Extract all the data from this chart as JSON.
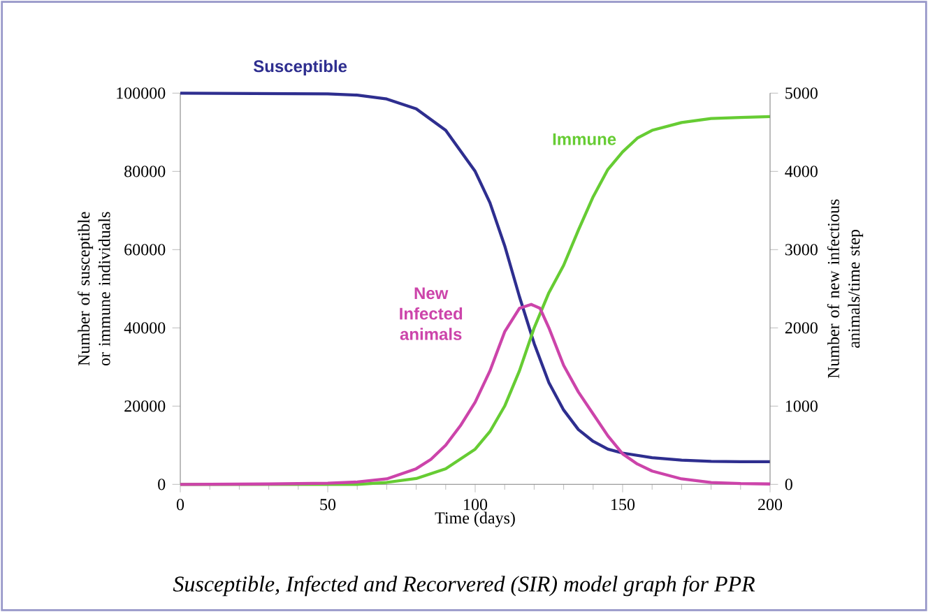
{
  "chart_data": {
    "type": "line",
    "xlabel": "Time (days)",
    "ylabel": "Number of susceptible or immune individuals",
    "y2label": "Number of new infectious animals/time step",
    "annotations": [
      "Susceptible, Infected and Recorvered (SIR) model graph for PPR"
    ],
    "xlim": [
      0,
      200
    ],
    "xticks": [
      0,
      50,
      100,
      150,
      200
    ],
    "ylim": [
      0,
      100000
    ],
    "yticks": [
      0,
      20000,
      40000,
      60000,
      80000,
      100000
    ],
    "y2lim": [
      0,
      5000
    ],
    "y2ticks": [
      0,
      1000,
      2000,
      3000,
      4000,
      5000
    ],
    "grid": false,
    "series": [
      {
        "name": "Susceptible",
        "color": "#2e2e8f",
        "x": [
          0,
          50,
          60,
          70,
          80,
          90,
          100,
          105,
          110,
          115,
          120,
          125,
          130,
          135,
          140,
          145,
          150,
          160,
          170,
          180,
          190,
          200
        ],
        "values": [
          100000,
          99800,
          99500,
          98500,
          96000,
          90500,
          80000,
          72000,
          61000,
          48000,
          36000,
          26000,
          19000,
          14000,
          11000,
          9000,
          8000,
          6800,
          6200,
          5900,
          5800,
          5800
        ]
      },
      {
        "name": "Immune",
        "color": "#66cc33",
        "x": [
          0,
          60,
          70,
          80,
          90,
          100,
          105,
          110,
          115,
          120,
          125,
          130,
          135,
          140,
          145,
          150,
          155,
          160,
          170,
          180,
          190,
          200
        ],
        "values": [
          0,
          0,
          500,
          1500,
          4000,
          9000,
          13500,
          20000,
          29000,
          40000,
          49000,
          56000,
          65000,
          73500,
          80500,
          85000,
          88500,
          90500,
          92500,
          93500,
          93800,
          94000
        ]
      },
      {
        "name": "New Infected animals",
        "color": "#cc44aa",
        "axis": "y2",
        "x": [
          0,
          30,
          50,
          60,
          70,
          80,
          85,
          90,
          95,
          100,
          105,
          110,
          115,
          119,
          122,
          125,
          130,
          135,
          140,
          145,
          150,
          155,
          160,
          170,
          180,
          190,
          200
        ],
        "values": [
          0,
          5,
          15,
          30,
          70,
          200,
          320,
          500,
          750,
          1050,
          1450,
          1950,
          2250,
          2300,
          2250,
          2000,
          1520,
          1180,
          900,
          620,
          390,
          260,
          170,
          70,
          25,
          10,
          5
        ]
      }
    ]
  }
}
